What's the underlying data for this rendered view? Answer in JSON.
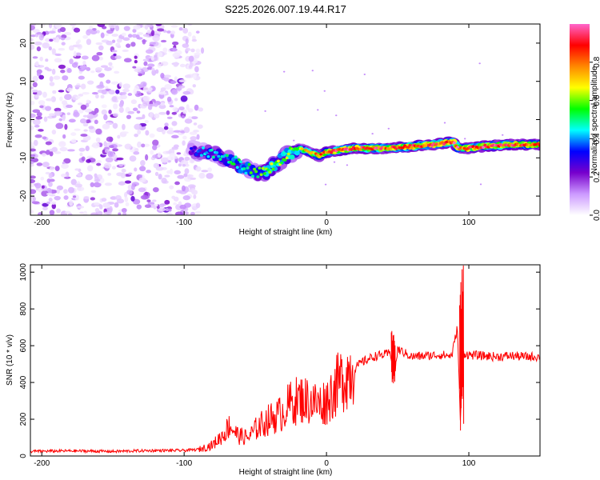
{
  "chart_data": [
    {
      "type": "heatmap",
      "title": "S225.2026.007.19.44.R17",
      "xlabel": "Height of straight line (km)",
      "ylabel": "Frequency (Hz)",
      "xlim": [
        -208,
        150
      ],
      "ylim": [
        -25,
        25
      ],
      "xticks": [
        -200,
        -100,
        0,
        100
      ],
      "yticks": [
        -20,
        -10,
        0,
        10,
        20
      ],
      "colorbar": {
        "label": "Normalized spectral amplitude",
        "range": [
          0,
          1
        ],
        "ticks": [
          "0.0",
          "0.2",
          "0.4",
          "0.6",
          "0.8"
        ],
        "colors": [
          "#ffffff",
          "#cc99ff",
          "#7700cc",
          "#0000ff",
          "#00ffff",
          "#00ff00",
          "#ffff00",
          "#ff8800",
          "#ff0000",
          "#ff66cc"
        ]
      },
      "ridge": {
        "x": [
          -95,
          -85,
          -75,
          -65,
          -55,
          -45,
          -38,
          -30,
          -20,
          -12,
          -5,
          0,
          10,
          20,
          40,
          60,
          75,
          85,
          90,
          92,
          95,
          100,
          110,
          130,
          150
        ],
        "freq": [
          -8,
          -8.5,
          -9.5,
          -11,
          -13,
          -14,
          -12.5,
          -10,
          -7.5,
          -8.5,
          -9.5,
          -8.5,
          -8,
          -7.5,
          -7.5,
          -7,
          -6.5,
          -6,
          -6,
          -7.5,
          -7.5,
          -7.5,
          -7,
          -6.5,
          -6.5
        ],
        "amplitude": [
          0.3,
          0.4,
          0.45,
          0.5,
          0.5,
          0.55,
          0.6,
          0.6,
          0.6,
          0.7,
          0.8,
          0.85,
          0.9,
          0.9,
          0.85,
          0.9,
          0.85,
          0.9,
          0.95,
          0.9,
          0.8,
          0.85,
          0.9,
          0.85,
          0.8
        ]
      },
      "noise_region": {
        "x_min": -208,
        "x_max": -90,
        "amplitude_range": [
          0.0,
          0.25
        ]
      }
    },
    {
      "type": "line",
      "xlabel": "Height of straight line (km)",
      "ylabel": "SNR (10 * v/v)",
      "xlim": [
        -208,
        150
      ],
      "ylim": [
        0,
        1040
      ],
      "xticks": [
        -200,
        -100,
        0,
        100
      ],
      "yticks": [
        0,
        200,
        400,
        600,
        800,
        1000
      ],
      "series": [
        {
          "name": "SNR",
          "color": "#ff0000",
          "x": [
            -208,
            -180,
            -150,
            -120,
            -100,
            -90,
            -80,
            -72,
            -68,
            -62,
            -55,
            -48,
            -40,
            -32,
            -25,
            -18,
            -12,
            -5,
            0,
            5,
            10,
            15,
            20,
            25,
            30,
            35,
            40,
            45,
            48,
            50,
            55,
            60,
            70,
            80,
            88,
            92,
            94,
            96,
            100,
            110,
            120,
            130,
            140,
            150
          ],
          "y": [
            25,
            28,
            25,
            30,
            30,
            35,
            60,
            120,
            170,
            110,
            100,
            160,
            200,
            230,
            290,
            310,
            300,
            280,
            300,
            360,
            410,
            450,
            480,
            510,
            530,
            545,
            550,
            560,
            450,
            580,
            560,
            540,
            545,
            550,
            545,
            700,
            200,
            560,
            550,
            545,
            540,
            545,
            540,
            540
          ]
        }
      ],
      "spikes": [
        {
          "x": 47,
          "y_min": 380,
          "y_max": 690
        },
        {
          "x": 95,
          "y_min": 100,
          "y_max": 1040
        }
      ]
    }
  ]
}
